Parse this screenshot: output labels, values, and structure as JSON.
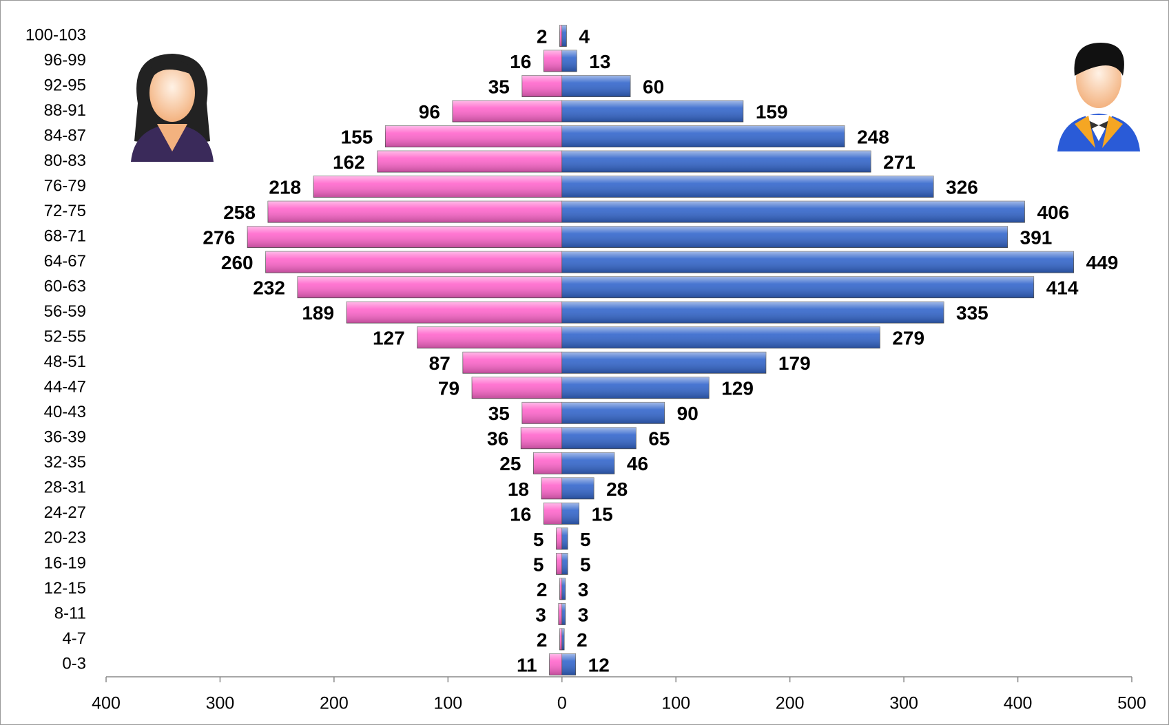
{
  "chart_data": {
    "type": "bar",
    "categories": [
      "100-103",
      "96-99",
      "92-95",
      "88-91",
      "84-87",
      "80-83",
      "76-79",
      "72-75",
      "68-71",
      "64-67",
      "60-63",
      "56-59",
      "52-55",
      "48-51",
      "44-47",
      "40-43",
      "36-39",
      "32-35",
      "28-31",
      "24-27",
      "20-23",
      "16-19",
      "12-15",
      "8-11",
      "4-7",
      "0-3"
    ],
    "series": [
      {
        "color": "#ff66cc",
        "values": [
          2,
          16,
          35,
          96,
          155,
          162,
          218,
          258,
          276,
          260,
          232,
          189,
          127,
          87,
          79,
          35,
          36,
          25,
          18,
          16,
          5,
          5,
          2,
          3,
          2,
          11
        ]
      },
      {
        "color": "#3366cc",
        "values": [
          4,
          13,
          60,
          159,
          248,
          271,
          326,
          406,
          391,
          449,
          414,
          335,
          279,
          179,
          129,
          90,
          65,
          46,
          28,
          15,
          5,
          5,
          3,
          3,
          2,
          12
        ]
      }
    ],
    "xlim": [
      -400,
      500
    ],
    "xticks": [
      {
        "value": -400,
        "label": "400"
      },
      {
        "value": -300,
        "label": "300"
      },
      {
        "value": -200,
        "label": "200"
      },
      {
        "value": -100,
        "label": "100"
      },
      0,
      100,
      200,
      300,
      400,
      500
    ]
  }
}
